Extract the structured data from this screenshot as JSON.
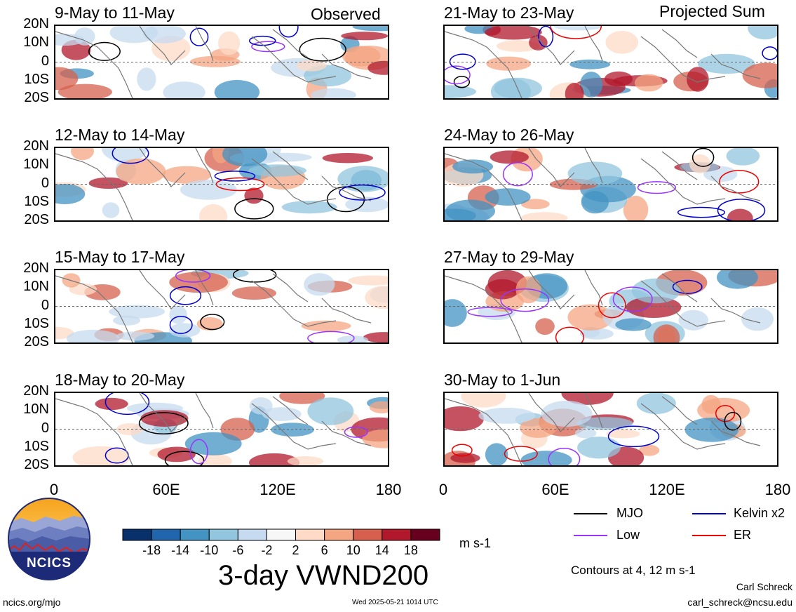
{
  "panel_tags": {
    "left": "Observed",
    "right": "Projected Sum"
  },
  "panels": [
    {
      "title": "9-May to 11-May"
    },
    {
      "title": "12-May to 14-May"
    },
    {
      "title": "15-May to 17-May"
    },
    {
      "title": "18-May to 20-May"
    },
    {
      "title": "21-May to 23-May"
    },
    {
      "title": "24-May to 26-May"
    },
    {
      "title": "27-May to 29-May"
    },
    {
      "title": "30-May to 1-Jun"
    }
  ],
  "lat_labels": [
    "20N",
    "10N",
    "0",
    "10S",
    "20S"
  ],
  "lon_labels": [
    "0",
    "60E",
    "120E",
    "180"
  ],
  "legend": {
    "items": [
      {
        "label": "MJO",
        "color": "#000000"
      },
      {
        "label": "Kelvin x2",
        "color": "#0000cc"
      },
      {
        "label": "Low",
        "color": "#9933ff"
      },
      {
        "label": "ER",
        "color": "#ee0000"
      }
    ],
    "contours_note": "Contours at 4, 12 m s-1"
  },
  "colorbar": {
    "colors": [
      "#08306b",
      "#2166ac",
      "#4393c3",
      "#92c5de",
      "#c6dbef",
      "#f7f7f7",
      "#fddbc7",
      "#f4a582",
      "#d6604d",
      "#b2182b",
      "#67001f"
    ],
    "labels": [
      "-18",
      "-14",
      "-10",
      "-6",
      "-2",
      "2",
      "6",
      "10",
      "14",
      "18"
    ],
    "units": "m s-1"
  },
  "main_title": "3-day VWND200",
  "footer": {
    "url": "ncics.org/mjo",
    "timestamp": "Wed 2025-05-21 1014 UTC",
    "author": "Carl Schreck",
    "email": "carl_schreck@ncsu.edu"
  },
  "logo": {
    "text": "NCICS"
  }
}
